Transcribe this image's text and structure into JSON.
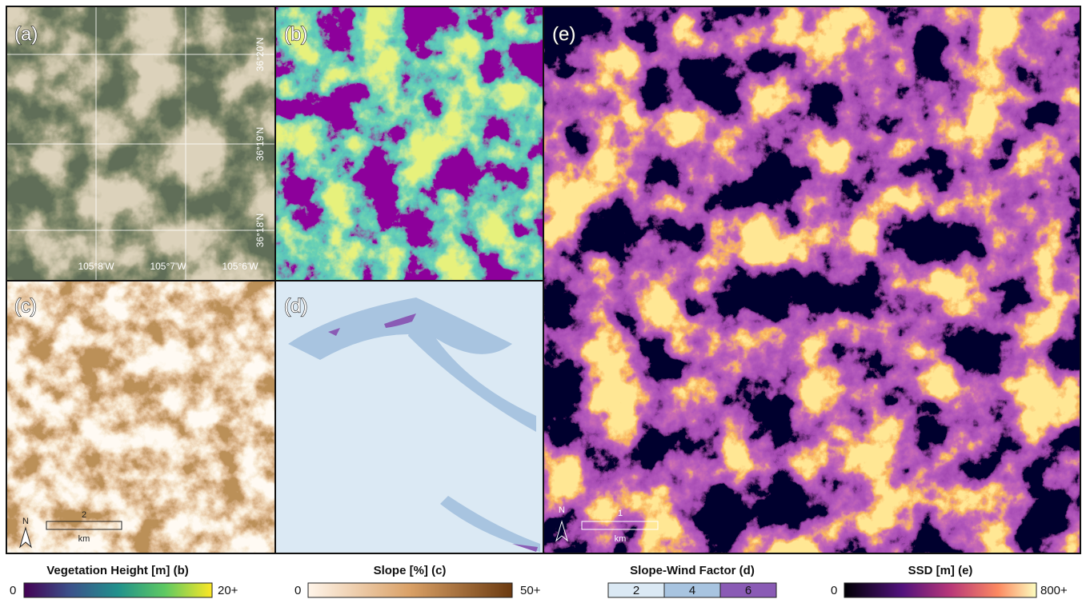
{
  "panels": [
    {
      "label": "(a)"
    },
    {
      "label": "(b)"
    },
    {
      "label": "(c)"
    },
    {
      "label": "(d)"
    },
    {
      "label": "(e)"
    }
  ],
  "graticule": {
    "latitudes": [
      "36°20'N",
      "36°19'N",
      "36°18'N"
    ],
    "longitudes": [
      "105°8'W",
      "105°7'W",
      "105°6'W"
    ]
  },
  "scale_bars": [
    {
      "north": "N",
      "distance": "2",
      "unit": "km"
    },
    {
      "north": "N",
      "distance": "1",
      "unit": "km"
    }
  ],
  "legends": [
    {
      "title": "Vegetation Height [m] (b)",
      "min": "0",
      "max": "20+"
    },
    {
      "title": "Slope [%] (c)",
      "min": "0",
      "max": "50+"
    },
    {
      "title": "Slope-Wind Factor (d)",
      "classes": [
        "2",
        "4",
        "6"
      ]
    },
    {
      "title": "SSD [m] (e)",
      "min": "0",
      "max": "800+"
    }
  ]
}
